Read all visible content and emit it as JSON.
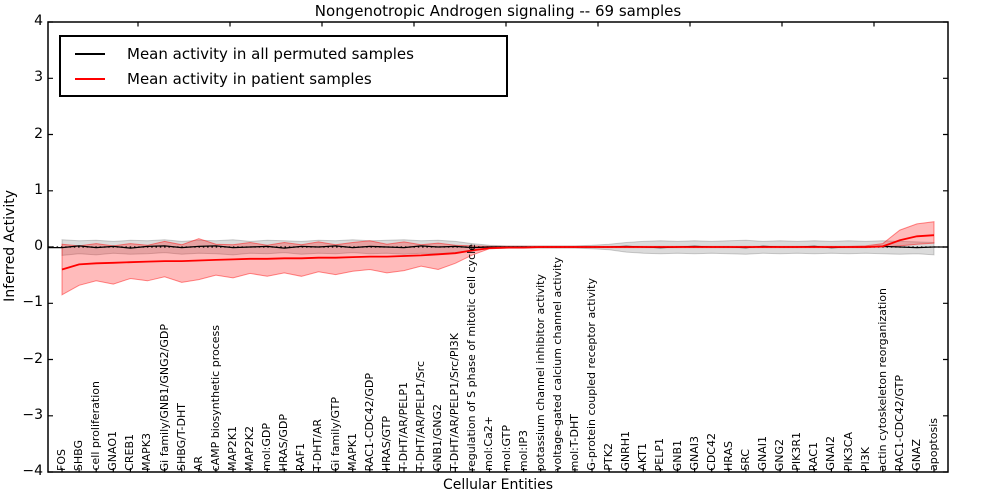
{
  "chart_data": {
    "type": "line",
    "title": "Nongenotropic Androgen signaling -- 69 samples",
    "xlabel": "Cellular Entities",
    "ylabel": "Inferred Activity",
    "ylim": [
      -4,
      4
    ],
    "ytick_labels": [
      "4",
      "3",
      "2",
      "1",
      "0",
      "−1",
      "−2",
      "−3",
      "−4"
    ],
    "grid": false,
    "legend_position": "upper left",
    "legend": [
      {
        "label": "Mean activity in all permuted samples",
        "color": "#000000"
      },
      {
        "label": "Mean activity in patient samples",
        "color": "#ff0000"
      }
    ],
    "categories": [
      "FOS",
      "SHBG",
      "cell proliferation",
      "GNAO1",
      "CREB1",
      "MAPK3",
      "Gi family/GNB1/GNG2/GDP",
      "SHBG/T-DHT",
      "AR",
      "cAMP biosynthetic process",
      "MAP2K1",
      "MAP2K2",
      "mol:GDP",
      "HRAS/GDP",
      "RAF1",
      "T-DHT/AR",
      "Gi family/GTP",
      "MAPK1",
      "RAC1-CDC42/GDP",
      "HRAS/GTP",
      "T-DHT/AR/PELP1",
      "T-DHT/AR/PELP1/Src",
      "GNB1/GNG2",
      "T-DHT/AR/PELP1/Src/PI3K",
      "regulation of S phase of mitotic cell cycle",
      "mol:Ca2+",
      "mol:GTP",
      "mol:IP3",
      "potassium channel inhibitor activity",
      "voltage-gated calcium channel activity",
      "mol:T-DHT",
      "G-protein coupled receptor activity",
      "PTK2",
      "GNRH1",
      "AKT1",
      "PELP1",
      "GNB1",
      "GNAI3",
      "CDC42",
      "HRAS",
      "SRC",
      "GNAI1",
      "GNG2",
      "PIK3R1",
      "RAC1",
      "GNAI2",
      "PIK3CA",
      "PI3K",
      "actin cytoskeleton reorganization",
      "RAC1-CDC42/GTP",
      "GNAZ",
      "apoptosis"
    ],
    "series": [
      {
        "name": "Mean activity in all permuted samples",
        "color": "#000000",
        "band_color": "rgba(0,0,0,0.14)",
        "band_edge": "rgba(0,0,0,0.18)",
        "values": [
          -0.01,
          0.02,
          -0.01,
          0.01,
          -0.02,
          0.01,
          0.02,
          -0.01,
          0.01,
          0.02,
          -0.01,
          0,
          0.01,
          -0.02,
          0.01,
          0,
          0.02,
          -0.01,
          0.01,
          0,
          -0.01,
          0.02,
          0,
          0.01,
          -0.01,
          0,
          0,
          0,
          0,
          0,
          0,
          0,
          0,
          0.01,
          0,
          -0.01,
          0,
          0.01,
          0,
          0,
          -0.01,
          0.01,
          0,
          0,
          0.01,
          -0.01,
          0,
          0,
          0.01,
          0,
          -0.01,
          0
        ],
        "band_lo": [
          -0.15,
          -0.12,
          -0.14,
          -0.11,
          -0.13,
          -0.12,
          -0.1,
          -0.13,
          -0.11,
          -0.12,
          -0.14,
          -0.11,
          -0.12,
          -0.1,
          -0.13,
          -0.11,
          -0.12,
          -0.1,
          -0.12,
          -0.11,
          -0.13,
          -0.11,
          -0.12,
          -0.1,
          -0.06,
          -0.03,
          -0.02,
          -0.02,
          -0.02,
          -0.02,
          -0.02,
          -0.03,
          -0.05,
          -0.09,
          -0.11,
          -0.12,
          -0.11,
          -0.12,
          -0.11,
          -0.12,
          -0.13,
          -0.11,
          -0.12,
          -0.11,
          -0.12,
          -0.11,
          -0.12,
          -0.11,
          -0.12,
          -0.13,
          -0.12,
          -0.14
        ],
        "band_hi": [
          0.13,
          0.11,
          0.12,
          0.1,
          0.12,
          0.11,
          0.13,
          0.1,
          0.12,
          0.11,
          0.13,
          0.1,
          0.12,
          0.11,
          0.1,
          0.12,
          0.11,
          0.13,
          0.11,
          0.12,
          0.13,
          0.11,
          0.12,
          0.1,
          0.06,
          0.03,
          0.02,
          0.02,
          0.02,
          0.02,
          0.02,
          0.03,
          0.05,
          0.08,
          0.1,
          0.11,
          0.1,
          0.11,
          0.1,
          0.11,
          0.12,
          0.1,
          0.11,
          0.1,
          0.11,
          0.1,
          0.11,
          0.1,
          0.11,
          0.1,
          0.09,
          0.08
        ]
      },
      {
        "name": "Mean activity in patient samples",
        "color": "#ff0000",
        "band_color": "rgba(255,30,30,0.30)",
        "band_edge": "rgba(255,0,0,0.45)",
        "values": [
          -0.4,
          -0.31,
          -0.29,
          -0.28,
          -0.27,
          -0.26,
          -0.25,
          -0.25,
          -0.24,
          -0.23,
          -0.22,
          -0.21,
          -0.21,
          -0.2,
          -0.2,
          -0.19,
          -0.19,
          -0.18,
          -0.17,
          -0.17,
          -0.16,
          -0.15,
          -0.13,
          -0.11,
          -0.06,
          -0.02,
          -0.01,
          -0.01,
          0,
          0,
          0,
          0,
          0,
          0,
          0,
          0,
          0,
          0,
          0,
          0,
          0,
          0,
          0,
          0,
          0,
          0,
          0,
          0,
          0.01,
          0.12,
          0.19,
          0.21
        ],
        "band_lo": [
          -0.85,
          -0.68,
          -0.6,
          -0.66,
          -0.56,
          -0.6,
          -0.53,
          -0.63,
          -0.58,
          -0.5,
          -0.55,
          -0.47,
          -0.52,
          -0.46,
          -0.52,
          -0.44,
          -0.49,
          -0.43,
          -0.4,
          -0.46,
          -0.42,
          -0.34,
          -0.4,
          -0.29,
          -0.14,
          -0.03,
          -0.02,
          -0.01,
          -0.01,
          -0.01,
          -0.01,
          -0.01,
          -0.01,
          -0.01,
          -0.01,
          -0.01,
          -0.01,
          -0.01,
          -0.01,
          -0.01,
          -0.01,
          -0.01,
          -0.01,
          -0.01,
          -0.01,
          -0.01,
          -0.01,
          -0.01,
          0,
          0.02,
          0.05,
          0.07
        ],
        "band_hi": [
          0.05,
          0.02,
          0.06,
          0.02,
          0.06,
          0.03,
          0.1,
          0.04,
          0.15,
          0.05,
          0.04,
          0.08,
          0.03,
          0.08,
          0.04,
          0.09,
          0.04,
          0.08,
          0.11,
          0.05,
          0.09,
          0.04,
          0.07,
          0.03,
          0.02,
          0.01,
          0.01,
          0.01,
          0.01,
          0.01,
          0.01,
          0.01,
          0.01,
          0.01,
          0.01,
          0.01,
          0.01,
          0.01,
          0.01,
          0.01,
          0.01,
          0.01,
          0.01,
          0.01,
          0.01,
          0.01,
          0.01,
          0.02,
          0.06,
          0.3,
          0.41,
          0.45
        ]
      }
    ]
  }
}
